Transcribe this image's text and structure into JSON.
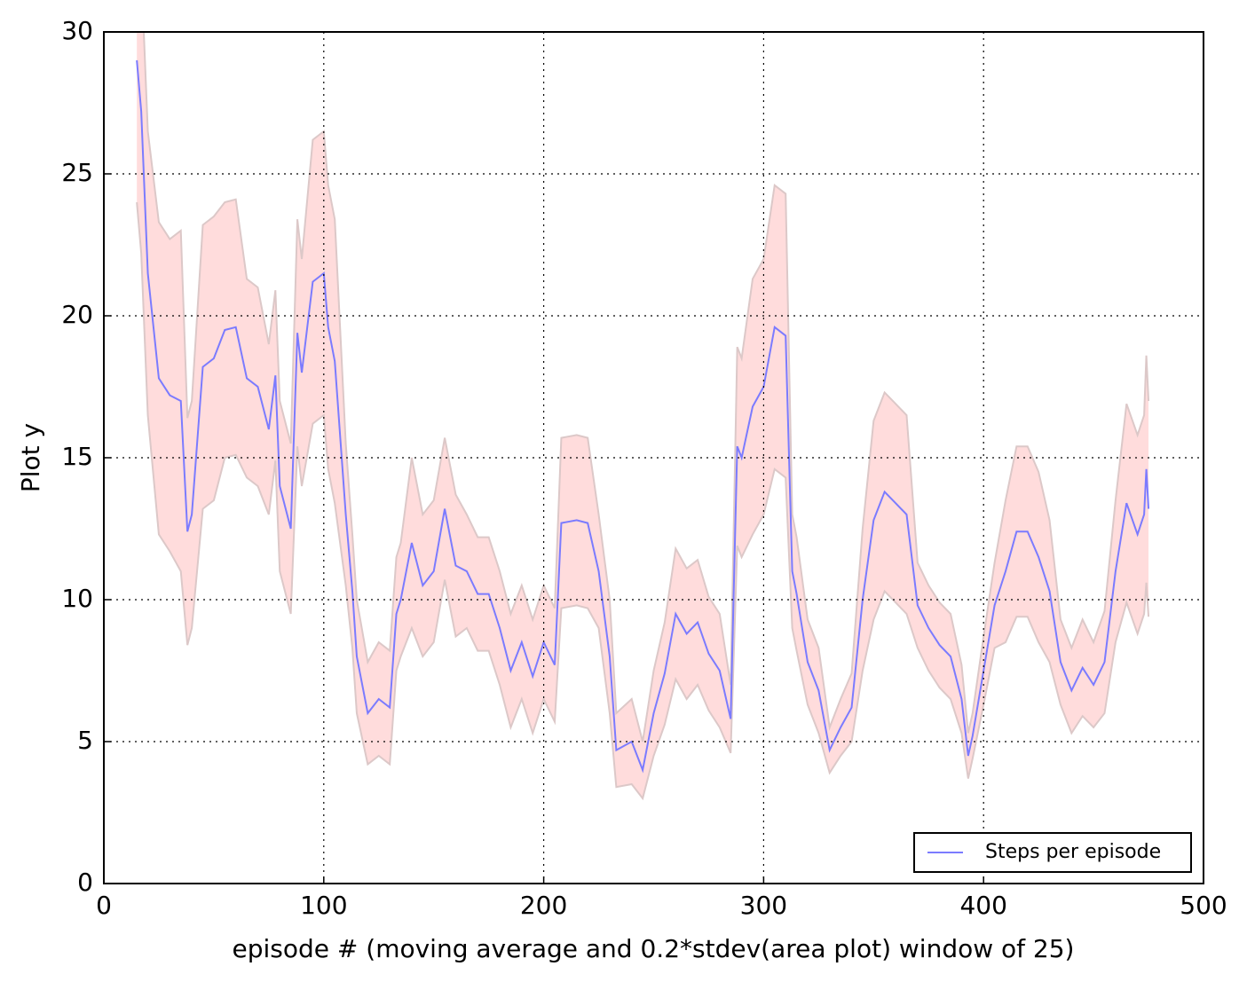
{
  "chart_data": {
    "type": "line",
    "xlabel": "episode # (moving average and 0.2*stdev(area plot) window of 25)",
    "ylabel": "Plot y",
    "xlim": [
      0,
      500
    ],
    "ylim": [
      0,
      30
    ],
    "xticks": [
      0,
      100,
      200,
      300,
      400,
      500
    ],
    "yticks": [
      0,
      5,
      10,
      15,
      20,
      25,
      30
    ],
    "grid": true,
    "legend": "lower right",
    "x": [
      15,
      17,
      20,
      25,
      30,
      35,
      38,
      40,
      45,
      50,
      55,
      60,
      65,
      70,
      75,
      78,
      80,
      85,
      88,
      90,
      95,
      100,
      102,
      105,
      110,
      113,
      115,
      120,
      125,
      130,
      133,
      135,
      140,
      145,
      150,
      155,
      160,
      165,
      170,
      175,
      180,
      185,
      190,
      195,
      200,
      205,
      208,
      215,
      220,
      225,
      230,
      233,
      240,
      245,
      250,
      255,
      260,
      265,
      270,
      275,
      280,
      285,
      288,
      290,
      295,
      300,
      305,
      310,
      313,
      315,
      320,
      325,
      330,
      335,
      340,
      345,
      350,
      355,
      360,
      365,
      370,
      375,
      380,
      385,
      390,
      393,
      395,
      400,
      405,
      410,
      415,
      420,
      425,
      430,
      435,
      440,
      445,
      450,
      455,
      460,
      465,
      470,
      473,
      474,
      475
    ],
    "series": [
      {
        "name": "Steps per episode",
        "color": "#7b7bff",
        "values": [
          29,
          27.2,
          21.5,
          17.8,
          17.2,
          17,
          12.4,
          13,
          18.2,
          18.5,
          19.5,
          19.6,
          17.8,
          17.5,
          16,
          17.9,
          14,
          12.5,
          19.4,
          18,
          21.2,
          21.5,
          19.6,
          18.4,
          13,
          10.3,
          8,
          6,
          6.5,
          6.2,
          9.5,
          10,
          12,
          10.5,
          11,
          13.2,
          11.2,
          11,
          10.2,
          10.2,
          9,
          7.5,
          8.5,
          7.3,
          8.5,
          7.7,
          12.7,
          12.8,
          12.7,
          11,
          8,
          4.7,
          5,
          4,
          6,
          7.4,
          9.5,
          8.8,
          9.2,
          8.1,
          7.5,
          5.8,
          15.4,
          15,
          16.8,
          17.5,
          19.6,
          19.3,
          11,
          10.2,
          7.8,
          6.8,
          4.7,
          5.5,
          6.2,
          10,
          12.8,
          13.8,
          13.4,
          13,
          9.8,
          9,
          8.4,
          8,
          6.5,
          4.5,
          5.2,
          7.5,
          9.8,
          11,
          12.4,
          12.4,
          11.5,
          10.3,
          7.8,
          6.8,
          7.6,
          7,
          7.8,
          11,
          13.4,
          12.3,
          13,
          14.6,
          13.2
        ]
      }
    ],
    "band": {
      "color": "#ffdcdc",
      "edge_color": "#dcc8c8",
      "upper": [
        34,
        32.2,
        26.5,
        23.3,
        22.7,
        23,
        16.4,
        17,
        23.2,
        23.5,
        24,
        24.1,
        21.3,
        21,
        19,
        20.9,
        17,
        15.5,
        23.4,
        22,
        26.2,
        26.5,
        24.6,
        23.4,
        15.5,
        12.3,
        10,
        7.8,
        8.5,
        8.2,
        11.5,
        12,
        15,
        13,
        13.5,
        15.7,
        13.7,
        13,
        12.2,
        12.2,
        11,
        9.5,
        10.5,
        9.3,
        10.5,
        9.7,
        15.7,
        15.8,
        15.7,
        13,
        10,
        6,
        6.5,
        5,
        7.5,
        9.2,
        11.8,
        11.1,
        11.4,
        10.1,
        9.5,
        7,
        18.9,
        18.5,
        21.3,
        22,
        24.6,
        24.3,
        13,
        12.2,
        9.3,
        8.3,
        5.5,
        6.5,
        7.4,
        12.5,
        16.3,
        17.3,
        16.9,
        16.5,
        11.3,
        10.5,
        9.9,
        9.5,
        7.7,
        5.3,
        6,
        8.7,
        11.3,
        13.5,
        15.4,
        15.4,
        14.5,
        12.8,
        9.3,
        8.3,
        9.3,
        8.5,
        9.6,
        13.5,
        16.9,
        15.8,
        16.5,
        18.6,
        17
      ],
      "lower": [
        24,
        22.2,
        16.5,
        12.3,
        11.7,
        11,
        8.4,
        9,
        13.2,
        13.5,
        15,
        15.1,
        14.3,
        14,
        13,
        14.9,
        11,
        9.5,
        15.4,
        14,
        16.2,
        16.5,
        14.6,
        13.4,
        10.5,
        8.3,
        6,
        4.2,
        4.5,
        4.2,
        7.5,
        8,
        9,
        8,
        8.5,
        10.7,
        8.7,
        9,
        8.2,
        8.2,
        7,
        5.5,
        6.5,
        5.3,
        6.5,
        5.7,
        9.7,
        9.8,
        9.7,
        9,
        6,
        3.4,
        3.5,
        3,
        4.5,
        5.6,
        7.2,
        6.5,
        7,
        6.1,
        5.5,
        4.6,
        11.9,
        11.5,
        12.3,
        13,
        14.6,
        14.3,
        9,
        8.2,
        6.3,
        5.3,
        3.9,
        4.5,
        5,
        7.5,
        9.3,
        10.3,
        9.9,
        9.5,
        8.3,
        7.5,
        6.9,
        6.5,
        5.3,
        3.7,
        4.4,
        6.3,
        8.3,
        8.5,
        9.4,
        9.4,
        8.5,
        7.8,
        6.3,
        5.3,
        5.9,
        5.5,
        6,
        8.5,
        9.9,
        8.8,
        9.5,
        10.6,
        9.4
      ]
    }
  }
}
